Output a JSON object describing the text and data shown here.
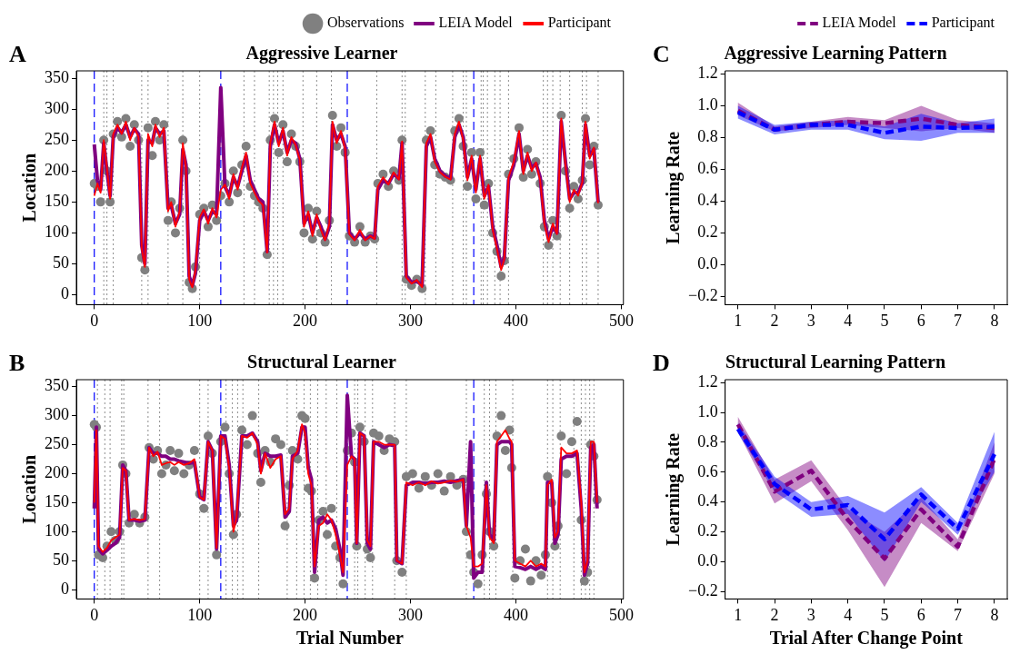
{
  "chart_data": [
    {
      "type": "line",
      "title": "Aggressive Learner",
      "ylabel": "Location",
      "annotations": [
        "A"
      ],
      "legend": "top right",
      "line_style": "solid",
      "xlim": [
        -17,
        502
      ],
      "xticks": [
        0,
        100,
        200,
        300,
        400,
        500
      ],
      "ylim": [
        -16,
        362
      ],
      "yticks": [
        0,
        50,
        100,
        150,
        200,
        250,
        300,
        350
      ],
      "x": [
        0,
        3,
        6,
        9,
        12,
        15,
        18,
        22,
        26,
        30,
        34,
        38,
        42,
        45,
        48,
        51,
        55,
        58,
        62,
        66,
        70,
        73,
        77,
        81,
        84,
        87,
        90,
        93,
        96,
        100,
        104,
        108,
        112,
        116,
        120,
        124,
        128,
        132,
        136,
        140,
        144,
        148,
        152,
        156,
        160,
        164,
        167,
        171,
        175,
        179,
        183,
        187,
        191,
        195,
        199,
        203,
        207,
        211,
        215,
        219,
        223,
        226,
        230,
        234,
        238,
        242,
        247,
        252,
        257,
        262,
        266,
        269,
        274,
        279,
        284,
        289,
        292,
        296,
        301,
        306,
        311,
        315,
        319,
        323,
        328,
        333,
        338,
        342,
        346,
        350,
        354,
        358,
        362,
        366,
        370,
        374,
        378,
        382,
        386,
        389,
        393,
        398,
        403,
        407,
        411,
        415,
        419,
        423,
        427,
        431,
        435,
        439,
        443,
        447,
        451,
        455,
        459,
        463,
        466,
        470,
        474,
        478
      ],
      "series": [
        {
          "name": "Observations",
          "type": "scatter",
          "marker": "circle",
          "color": "#808080",
          "values": [
            180,
            175,
            150,
            250,
            200,
            150,
            260,
            280,
            255,
            285,
            240,
            275,
            250,
            60,
            40,
            270,
            225,
            280,
            250,
            275,
            120,
            150,
            100,
            140,
            250,
            200,
            20,
            10,
            45,
            130,
            140,
            110,
            145,
            120,
            160,
            180,
            150,
            200,
            165,
            210,
            240,
            175,
            160,
            150,
            140,
            65,
            250,
            285,
            230,
            275,
            215,
            260,
            240,
            215,
            100,
            140,
            90,
            135,
            100,
            85,
            120,
            290,
            240,
            270,
            230,
            95,
            85,
            110,
            85,
            95,
            90,
            180,
            195,
            175,
            200,
            185,
            250,
            25,
            15,
            25,
            10,
            250,
            265,
            210,
            195,
            190,
            185,
            265,
            285,
            240,
            175,
            230,
            155,
            230,
            145,
            180,
            100,
            70,
            30,
            55,
            195,
            220,
            270,
            190,
            235,
            195,
            215,
            180,
            110,
            80,
            120,
            95,
            290,
            200,
            140,
            175,
            155,
            185,
            285,
            210,
            240,
            145
          ]
        },
        {
          "name": "LEIA Model",
          "type": "line",
          "color": "#800080",
          "values": [
            243,
            185,
            170,
            245,
            200,
            160,
            255,
            270,
            262,
            275,
            255,
            268,
            260,
            80,
            50,
            250,
            245,
            270,
            260,
            265,
            140,
            145,
            115,
            130,
            235,
            210,
            30,
            15,
            35,
            120,
            135,
            120,
            135,
            130,
            335,
            175,
            160,
            190,
            175,
            200,
            225,
            185,
            170,
            155,
            150,
            70,
            240,
            275,
            245,
            265,
            230,
            250,
            245,
            220,
            115,
            130,
            100,
            125,
            110,
            90,
            110,
            275,
            250,
            260,
            240,
            100,
            90,
            100,
            90,
            95,
            92,
            170,
            185,
            180,
            195,
            188,
            245,
            30,
            20,
            22,
            15,
            240,
            255,
            220,
            200,
            192,
            188,
            255,
            275,
            255,
            190,
            220,
            170,
            220,
            160,
            175,
            110,
            80,
            45,
            60,
            185,
            210,
            260,
            200,
            225,
            205,
            212,
            190,
            120,
            90,
            110,
            100,
            280,
            215,
            155,
            165,
            165,
            180,
            275,
            225,
            235,
            150
          ]
        },
        {
          "name": "Participant",
          "type": "line",
          "color": "#ff0000",
          "values": [
            160,
            180,
            165,
            250,
            205,
            155,
            260,
            275,
            260,
            280,
            250,
            270,
            255,
            75,
            45,
            260,
            240,
            275,
            255,
            270,
            135,
            150,
            110,
            135,
            245,
            205,
            25,
            12,
            40,
            125,
            138,
            115,
            140,
            125,
            170,
            178,
            155,
            195,
            170,
            205,
            230,
            180,
            165,
            152,
            145,
            68,
            245,
            280,
            240,
            270,
            225,
            255,
            242,
            218,
            110,
            135,
            95,
            130,
            105,
            88,
            115,
            280,
            245,
            265,
            235,
            98,
            88,
            105,
            88,
            95,
            90,
            175,
            190,
            178,
            198,
            186,
            248,
            28,
            18,
            24,
            12,
            245,
            260,
            215,
            198,
            191,
            186,
            260,
            280,
            250,
            185,
            225,
            165,
            225,
            155,
            178,
            105,
            75,
            40,
            58,
            190,
            215,
            265,
            195,
            230,
            200,
            214,
            185,
            115,
            85,
            115,
            98,
            285,
            210,
            150,
            170,
            160,
            182,
            280,
            220,
            238,
            148
          ]
        }
      ],
      "ref_lines": [
        {
          "axis": "x",
          "value": 0,
          "color": "#0000ff",
          "line_style": "dashed"
        },
        {
          "axis": "x",
          "value": 120,
          "color": "#0000ff",
          "line_style": "dashed"
        },
        {
          "axis": "x",
          "value": 240,
          "color": "#0000ff",
          "line_style": "dashed"
        },
        {
          "axis": "x",
          "value": 360,
          "color": "#0000ff",
          "line_style": "dashed"
        },
        {
          "axis": "x",
          "value": 9,
          "color": "#808080",
          "line_style": "dotted"
        },
        {
          "axis": "x",
          "value": 12,
          "color": "#808080",
          "line_style": "dotted"
        },
        {
          "axis": "x",
          "value": 18,
          "color": "#808080",
          "line_style": "dotted"
        },
        {
          "axis": "x",
          "value": 45,
          "color": "#808080",
          "line_style": "dotted"
        },
        {
          "axis": "x",
          "value": 51,
          "color": "#808080",
          "line_style": "dotted"
        },
        {
          "axis": "x",
          "value": 70,
          "color": "#808080",
          "line_style": "dotted"
        },
        {
          "axis": "x",
          "value": 84,
          "color": "#808080",
          "line_style": "dotted"
        },
        {
          "axis": "x",
          "value": 100,
          "color": "#808080",
          "line_style": "dotted"
        },
        {
          "axis": "x",
          "value": 142,
          "color": "#808080",
          "line_style": "dotted"
        },
        {
          "axis": "x",
          "value": 152,
          "color": "#808080",
          "line_style": "dotted"
        },
        {
          "axis": "x",
          "value": 166,
          "color": "#808080",
          "line_style": "dotted"
        },
        {
          "axis": "x",
          "value": 170,
          "color": "#808080",
          "line_style": "dotted"
        },
        {
          "axis": "x",
          "value": 174,
          "color": "#808080",
          "line_style": "dotted"
        },
        {
          "axis": "x",
          "value": 179,
          "color": "#808080",
          "line_style": "dotted"
        },
        {
          "axis": "x",
          "value": 198,
          "color": "#808080",
          "line_style": "dotted"
        },
        {
          "axis": "x",
          "value": 211,
          "color": "#808080",
          "line_style": "dotted"
        },
        {
          "axis": "x",
          "value": 225,
          "color": "#808080",
          "line_style": "dotted"
        },
        {
          "axis": "x",
          "value": 268,
          "color": "#808080",
          "line_style": "dotted"
        },
        {
          "axis": "x",
          "value": 292,
          "color": "#808080",
          "line_style": "dotted"
        },
        {
          "axis": "x",
          "value": 295,
          "color": "#808080",
          "line_style": "dotted"
        },
        {
          "axis": "x",
          "value": 314,
          "color": "#808080",
          "line_style": "dotted"
        },
        {
          "axis": "x",
          "value": 324,
          "color": "#808080",
          "line_style": "dotted"
        },
        {
          "axis": "x",
          "value": 340,
          "color": "#808080",
          "line_style": "dotted"
        },
        {
          "axis": "x",
          "value": 350,
          "color": "#808080",
          "line_style": "dotted"
        },
        {
          "axis": "x",
          "value": 353,
          "color": "#808080",
          "line_style": "dotted"
        },
        {
          "axis": "x",
          "value": 367,
          "color": "#808080",
          "line_style": "dotted"
        },
        {
          "axis": "x",
          "value": 369,
          "color": "#808080",
          "line_style": "dotted"
        },
        {
          "axis": "x",
          "value": 373,
          "color": "#808080",
          "line_style": "dotted"
        },
        {
          "axis": "x",
          "value": 380,
          "color": "#808080",
          "line_style": "dotted"
        },
        {
          "axis": "x",
          "value": 385,
          "color": "#808080",
          "line_style": "dotted"
        },
        {
          "axis": "x",
          "value": 393,
          "color": "#808080",
          "line_style": "dotted"
        },
        {
          "axis": "x",
          "value": 426,
          "color": "#808080",
          "line_style": "dotted"
        },
        {
          "axis": "x",
          "value": 430,
          "color": "#808080",
          "line_style": "dotted"
        },
        {
          "axis": "x",
          "value": 435,
          "color": "#808080",
          "line_style": "dotted"
        },
        {
          "axis": "x",
          "value": 442,
          "color": "#808080",
          "line_style": "dotted"
        },
        {
          "axis": "x",
          "value": 451,
          "color": "#808080",
          "line_style": "dotted"
        },
        {
          "axis": "x",
          "value": 463,
          "color": "#808080",
          "line_style": "dotted"
        },
        {
          "axis": "x",
          "value": 467,
          "color": "#808080",
          "line_style": "dotted"
        },
        {
          "axis": "x",
          "value": 478,
          "color": "#808080",
          "line_style": "dotted"
        }
      ]
    },
    {
      "type": "line",
      "title": "Structural Learner",
      "xlabel": "Trial Number",
      "ylabel": "Location",
      "annotations": [
        "B"
      ],
      "line_style": "solid",
      "xlim": [
        -17,
        502
      ],
      "xticks": [
        0,
        100,
        200,
        300,
        400,
        500
      ],
      "ylim": [
        -16,
        362
      ],
      "yticks": [
        0,
        50,
        100,
        150,
        200,
        250,
        300,
        350
      ],
      "x": [
        0,
        2,
        4,
        8,
        12,
        16,
        20,
        24,
        27,
        30,
        33,
        38,
        43,
        48,
        52,
        56,
        60,
        64,
        68,
        72,
        76,
        80,
        85,
        90,
        95,
        100,
        104,
        108,
        112,
        116,
        120,
        124,
        128,
        132,
        135,
        140,
        145,
        150,
        155,
        158,
        162,
        167,
        172,
        177,
        181,
        185,
        188,
        193,
        197,
        200,
        203,
        206,
        209,
        213,
        217,
        221,
        225,
        229,
        233,
        236,
        240,
        244,
        247,
        249,
        252,
        256,
        259,
        262,
        265,
        270,
        275,
        280,
        285,
        287,
        292,
        296,
        302,
        308,
        314,
        320,
        326,
        332,
        338,
        344,
        350,
        353,
        357,
        360,
        364,
        368,
        372,
        375,
        379,
        382,
        386,
        390,
        394,
        396,
        399,
        404,
        409,
        414,
        419,
        424,
        428,
        430,
        434,
        437,
        440,
        443,
        448,
        453,
        458,
        462,
        465,
        468,
        471,
        474,
        477
      ],
      "series": [
        {
          "type": "scatter",
          "marker": "circle",
          "color": "#808080",
          "values": [
            285,
            280,
            60,
            55,
            75,
            100,
            85,
            100,
            215,
            200,
            115,
            130,
            115,
            125,
            245,
            225,
            240,
            200,
            215,
            240,
            205,
            235,
            200,
            215,
            240,
            165,
            140,
            265,
            235,
            60,
            255,
            280,
            200,
            95,
            130,
            275,
            250,
            300,
            235,
            185,
            240,
            220,
            260,
            250,
            110,
            180,
            240,
            225,
            300,
            295,
            175,
            170,
            20,
            120,
            135,
            95,
            140,
            75,
            55,
            10,
            240,
            270,
            220,
            75,
            280,
            255,
            70,
            55,
            270,
            265,
            240,
            260,
            255,
            50,
            30,
            195,
            200,
            175,
            195,
            180,
            200,
            170,
            195,
            180,
            190,
            100,
            60,
            30,
            10,
            60,
            165,
            100,
            75,
            265,
            300,
            240,
            275,
            210,
            20,
            50,
            70,
            15,
            50,
            25,
            60,
            195,
            150,
            75,
            110,
            265,
            200,
            255,
            290,
            120,
            15,
            30,
            250,
            230,
            155
          ]
        },
        {
          "type": "line",
          "color": "#800080",
          "values": [
            140,
            280,
            70,
            62,
            68,
            75,
            80,
            90,
            215,
            205,
            120,
            120,
            118,
            120,
            245,
            235,
            235,
            230,
            230,
            225,
            225,
            222,
            220,
            218,
            220,
            160,
            155,
            255,
            240,
            70,
            265,
            265,
            215,
            110,
            120,
            265,
            265,
            270,
            255,
            205,
            235,
            230,
            230,
            232,
            125,
            135,
            230,
            235,
            280,
            280,
            210,
            190,
            30,
            120,
            125,
            115,
            120,
            105,
            70,
            25,
            335,
            230,
            225,
            80,
            270,
            265,
            80,
            70,
            255,
            250,
            245,
            250,
            248,
            50,
            45,
            180,
            185,
            185,
            183,
            185,
            185,
            187,
            185,
            188,
            190,
            110,
            255,
            20,
            30,
            30,
            185,
            95,
            85,
            250,
            255,
            255,
            255,
            250,
            40,
            38,
            35,
            40,
            35,
            40,
            35,
            185,
            185,
            80,
            95,
            225,
            230,
            230,
            235,
            140,
            25,
            45,
            245,
            250,
            140
          ]
        },
        {
          "type": "line",
          "color": "#ff0000",
          "values": [
            150,
            275,
            75,
            65,
            72,
            85,
            90,
            95,
            210,
            205,
            120,
            122,
            120,
            122,
            245,
            230,
            238,
            215,
            218,
            220,
            215,
            220,
            215,
            218,
            225,
            160,
            155,
            255,
            240,
            72,
            265,
            260,
            210,
            100,
            125,
            265,
            262,
            270,
            250,
            200,
            235,
            210,
            225,
            230,
            130,
            140,
            225,
            240,
            285,
            270,
            200,
            180,
            40,
            110,
            115,
            130,
            120,
            95,
            60,
            30,
            215,
            230,
            225,
            80,
            270,
            265,
            85,
            75,
            255,
            255,
            250,
            250,
            250,
            50,
            45,
            185,
            180,
            185,
            180,
            187,
            183,
            185,
            188,
            186,
            190,
            110,
            90,
            40,
            40,
            45,
            180,
            90,
            80,
            255,
            265,
            275,
            260,
            255,
            50,
            45,
            40,
            50,
            40,
            45,
            40,
            180,
            190,
            90,
            100,
            245,
            235,
            235,
            240,
            150,
            30,
            50,
            255,
            255,
            150
          ]
        }
      ],
      "ref_lines": [
        {
          "axis": "x",
          "value": 0,
          "color": "#0000ff",
          "line_style": "dashed"
        },
        {
          "axis": "x",
          "value": 120,
          "color": "#0000ff",
          "line_style": "dashed"
        },
        {
          "axis": "x",
          "value": 240,
          "color": "#0000ff",
          "line_style": "dashed"
        },
        {
          "axis": "x",
          "value": 360,
          "color": "#0000ff",
          "line_style": "dashed"
        },
        {
          "axis": "x",
          "value": 3,
          "color": "#808080",
          "line_style": "dotted"
        },
        {
          "axis": "x",
          "value": 10,
          "color": "#808080",
          "line_style": "dotted"
        },
        {
          "axis": "x",
          "value": 15,
          "color": "#808080",
          "line_style": "dotted"
        },
        {
          "axis": "x",
          "value": 26,
          "color": "#808080",
          "line_style": "dotted"
        },
        {
          "axis": "x",
          "value": 28,
          "color": "#808080",
          "line_style": "dotted"
        },
        {
          "axis": "x",
          "value": 51,
          "color": "#808080",
          "line_style": "dotted"
        },
        {
          "axis": "x",
          "value": 62,
          "color": "#808080",
          "line_style": "dotted"
        },
        {
          "axis": "x",
          "value": 100,
          "color": "#808080",
          "line_style": "dotted"
        },
        {
          "axis": "x",
          "value": 108,
          "color": "#808080",
          "line_style": "dotted"
        },
        {
          "axis": "x",
          "value": 125,
          "color": "#808080",
          "line_style": "dotted"
        },
        {
          "axis": "x",
          "value": 131,
          "color": "#808080",
          "line_style": "dotted"
        },
        {
          "axis": "x",
          "value": 136,
          "color": "#808080",
          "line_style": "dotted"
        },
        {
          "axis": "x",
          "value": 141,
          "color": "#808080",
          "line_style": "dotted"
        },
        {
          "axis": "x",
          "value": 156,
          "color": "#808080",
          "line_style": "dotted"
        },
        {
          "axis": "x",
          "value": 183,
          "color": "#808080",
          "line_style": "dotted"
        },
        {
          "axis": "x",
          "value": 192,
          "color": "#808080",
          "line_style": "dotted"
        },
        {
          "axis": "x",
          "value": 199,
          "color": "#808080",
          "line_style": "dotted"
        },
        {
          "axis": "x",
          "value": 205,
          "color": "#808080",
          "line_style": "dotted"
        },
        {
          "axis": "x",
          "value": 212,
          "color": "#808080",
          "line_style": "dotted"
        },
        {
          "axis": "x",
          "value": 220,
          "color": "#808080",
          "line_style": "dotted"
        },
        {
          "axis": "x",
          "value": 230,
          "color": "#808080",
          "line_style": "dotted"
        },
        {
          "axis": "x",
          "value": 247,
          "color": "#808080",
          "line_style": "dotted"
        },
        {
          "axis": "x",
          "value": 250,
          "color": "#808080",
          "line_style": "dotted"
        },
        {
          "axis": "x",
          "value": 257,
          "color": "#808080",
          "line_style": "dotted"
        },
        {
          "axis": "x",
          "value": 264,
          "color": "#808080",
          "line_style": "dotted"
        },
        {
          "axis": "x",
          "value": 285,
          "color": "#808080",
          "line_style": "dotted"
        },
        {
          "axis": "x",
          "value": 296,
          "color": "#808080",
          "line_style": "dotted"
        },
        {
          "axis": "x",
          "value": 353,
          "color": "#808080",
          "line_style": "dotted"
        },
        {
          "axis": "x",
          "value": 370,
          "color": "#808080",
          "line_style": "dotted"
        },
        {
          "axis": "x",
          "value": 375,
          "color": "#808080",
          "line_style": "dotted"
        },
        {
          "axis": "x",
          "value": 381,
          "color": "#808080",
          "line_style": "dotted"
        },
        {
          "axis": "x",
          "value": 397,
          "color": "#808080",
          "line_style": "dotted"
        },
        {
          "axis": "x",
          "value": 430,
          "color": "#808080",
          "line_style": "dotted"
        },
        {
          "axis": "x",
          "value": 435,
          "color": "#808080",
          "line_style": "dotted"
        },
        {
          "axis": "x",
          "value": 442,
          "color": "#808080",
          "line_style": "dotted"
        },
        {
          "axis": "x",
          "value": 455,
          "color": "#808080",
          "line_style": "dotted"
        },
        {
          "axis": "x",
          "value": 462,
          "color": "#808080",
          "line_style": "dotted"
        },
        {
          "axis": "x",
          "value": 466,
          "color": "#808080",
          "line_style": "dotted"
        },
        {
          "axis": "x",
          "value": 470,
          "color": "#808080",
          "line_style": "dotted"
        },
        {
          "axis": "x",
          "value": 474,
          "color": "#808080",
          "line_style": "dotted"
        }
      ]
    },
    {
      "type": "line",
      "title": "Aggressive Learning Pattern",
      "ylabel": "Learning Rate",
      "annotations": [
        "C"
      ],
      "legend": "top right",
      "line_style": "dashed",
      "x": [
        1,
        2,
        3,
        4,
        5,
        6,
        7,
        8
      ],
      "xlim": [
        0.65,
        8.35
      ],
      "xticks": [
        1,
        2,
        3,
        4,
        5,
        6,
        7,
        8
      ],
      "ylim": [
        -0.25,
        1.22
      ],
      "yticks": [
        {
          "value": -0.2,
          "label": "−0.2"
        },
        {
          "value": 0,
          "label": "0.0"
        },
        0.2,
        0.4,
        0.6,
        0.8,
        {
          "value": 1,
          "label": "1.0"
        },
        {
          "value": 1.2,
          "label": "1.2"
        }
      ],
      "series": [
        {
          "name": "LEIA Model",
          "color": "#800080",
          "values": [
            0.97,
            0.85,
            0.88,
            0.9,
            0.89,
            0.92,
            0.88,
            0.86
          ],
          "lower": [
            0.94,
            0.84,
            0.86,
            0.88,
            0.86,
            0.84,
            0.86,
            0.83
          ],
          "upper": [
            1.02,
            0.87,
            0.9,
            0.93,
            0.91,
            1.0,
            0.91,
            0.89
          ]
        },
        {
          "name": "Participant",
          "color": "#0000ff",
          "values": [
            0.96,
            0.85,
            0.88,
            0.88,
            0.83,
            0.87,
            0.86,
            0.87
          ],
          "lower": [
            0.92,
            0.82,
            0.85,
            0.85,
            0.79,
            0.78,
            0.83,
            0.83
          ],
          "upper": [
            1.0,
            0.88,
            0.9,
            0.91,
            0.87,
            0.95,
            0.89,
            0.92
          ]
        }
      ]
    },
    {
      "type": "line",
      "title": "Structural Learning Pattern",
      "xlabel": "Trial After Change Point",
      "ylabel": "Learning Rate",
      "annotations": [
        "D"
      ],
      "line_style": "dashed",
      "x": [
        1,
        2,
        3,
        4,
        5,
        6,
        7,
        8
      ],
      "xlim": [
        0.65,
        8.35
      ],
      "xticks": [
        1,
        2,
        3,
        4,
        5,
        6,
        7,
        8
      ],
      "ylim": [
        -0.25,
        1.22
      ],
      "yticks": [
        {
          "value": -0.2,
          "label": "−0.2"
        },
        {
          "value": 0,
          "label": "0.0"
        },
        0.2,
        0.4,
        0.6,
        0.8,
        {
          "value": 1,
          "label": "1.0"
        },
        {
          "value": 1.2,
          "label": "1.2"
        }
      ],
      "series": [
        {
          "color": "#800080",
          "values": [
            0.92,
            0.47,
            0.61,
            0.28,
            0.02,
            0.35,
            0.1,
            0.69
          ],
          "lower": [
            0.87,
            0.39,
            0.54,
            0.21,
            -0.17,
            0.26,
            0.07,
            0.59
          ],
          "upper": [
            0.97,
            0.55,
            0.68,
            0.35,
            0.2,
            0.43,
            0.15,
            0.8
          ]
        },
        {
          "color": "#0000ff",
          "values": [
            0.89,
            0.52,
            0.35,
            0.38,
            0.15,
            0.45,
            0.22,
            0.72
          ],
          "lower": [
            0.86,
            0.47,
            0.3,
            0.32,
            0.0,
            0.4,
            0.18,
            0.6
          ],
          "upper": [
            0.93,
            0.57,
            0.4,
            0.44,
            0.33,
            0.5,
            0.26,
            0.87
          ]
        }
      ]
    }
  ]
}
